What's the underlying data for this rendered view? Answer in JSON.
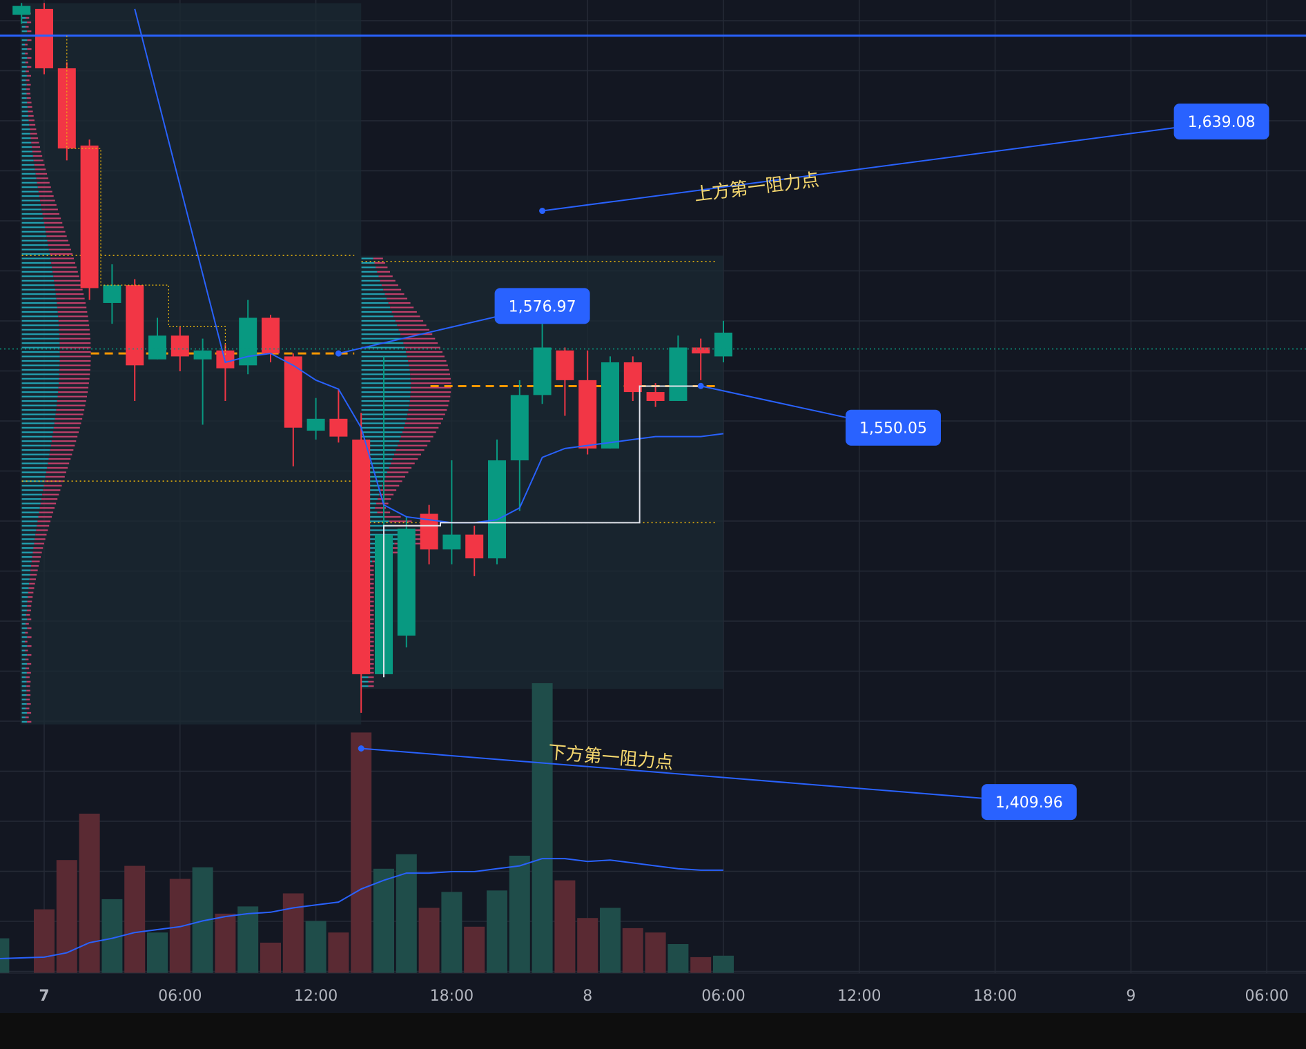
{
  "chart_data": {
    "type": "candlestick",
    "symbol_interval_hours": 1,
    "y_range": [
      1400,
      1680
    ],
    "x_ticks": [
      {
        "label": "7",
        "bold": true,
        "h": 0
      },
      {
        "label": "06:00",
        "h": 6
      },
      {
        "label": "12:00",
        "h": 12
      },
      {
        "label": "18:00",
        "h": 18
      },
      {
        "label": "8",
        "h": 24
      },
      {
        "label": "06:00",
        "h": 30
      },
      {
        "label": "12:00",
        "h": 36
      },
      {
        "label": "18:00",
        "h": 42
      },
      {
        "label": "9",
        "h": 48
      },
      {
        "label": "06:00",
        "h": 54
      }
    ],
    "candles": [
      {
        "h": -1,
        "o": 1675,
        "c": 1678,
        "hi": 1679,
        "lo": 1672
      },
      {
        "h": 0,
        "o": 1677,
        "c": 1657,
        "hi": 1679,
        "lo": 1655
      },
      {
        "h": 1,
        "o": 1657,
        "c": 1630,
        "hi": 1659,
        "lo": 1626
      },
      {
        "h": 2,
        "o": 1631,
        "c": 1583,
        "hi": 1633,
        "lo": 1579
      },
      {
        "h": 3,
        "o": 1578,
        "c": 1584,
        "hi": 1591,
        "lo": 1571
      },
      {
        "h": 4,
        "o": 1584,
        "c": 1557,
        "hi": 1586,
        "lo": 1545
      },
      {
        "h": 5,
        "o": 1559,
        "c": 1567,
        "hi": 1573,
        "lo": 1559
      },
      {
        "h": 6,
        "o": 1567,
        "c": 1560,
        "hi": 1570,
        "lo": 1555
      },
      {
        "h": 7,
        "o": 1559,
        "c": 1562,
        "hi": 1566,
        "lo": 1537
      },
      {
        "h": 8,
        "o": 1562,
        "c": 1556,
        "hi": 1564,
        "lo": 1545
      },
      {
        "h": 9,
        "o": 1557,
        "c": 1573,
        "hi": 1579,
        "lo": 1554
      },
      {
        "h": 10,
        "o": 1573,
        "c": 1561,
        "hi": 1574,
        "lo": 1558
      },
      {
        "h": 11,
        "o": 1560,
        "c": 1536,
        "hi": 1561,
        "lo": 1523
      },
      {
        "h": 12,
        "o": 1535,
        "c": 1539,
        "hi": 1546,
        "lo": 1532
      },
      {
        "h": 13,
        "o": 1539,
        "c": 1533,
        "hi": 1549,
        "lo": 1531
      },
      {
        "h": 14,
        "o": 1532,
        "c": 1453,
        "hi": 1541,
        "lo": 1440
      },
      {
        "h": 15,
        "o": 1453,
        "c": 1500,
        "hi": 1560,
        "lo": 1452
      },
      {
        "h": 16,
        "o": 1466,
        "c": 1502,
        "hi": 1506,
        "lo": 1462
      },
      {
        "h": 17,
        "o": 1507,
        "c": 1495,
        "hi": 1510,
        "lo": 1490
      },
      {
        "h": 18,
        "o": 1495,
        "c": 1500,
        "hi": 1525,
        "lo": 1490
      },
      {
        "h": 19,
        "o": 1500,
        "c": 1492,
        "hi": 1503,
        "lo": 1486
      },
      {
        "h": 20,
        "o": 1492,
        "c": 1525,
        "hi": 1532,
        "lo": 1490
      },
      {
        "h": 21,
        "o": 1525,
        "c": 1547,
        "hi": 1552,
        "lo": 1508
      },
      {
        "h": 22,
        "o": 1547,
        "c": 1563,
        "hi": 1577,
        "lo": 1544
      },
      {
        "h": 23,
        "o": 1562,
        "c": 1552,
        "hi": 1563,
        "lo": 1540
      },
      {
        "h": 24,
        "o": 1552,
        "c": 1529,
        "hi": 1562,
        "lo": 1527
      },
      {
        "h": 25,
        "o": 1529,
        "c": 1558,
        "hi": 1560,
        "lo": 1529
      },
      {
        "h": 26,
        "o": 1558,
        "c": 1548,
        "hi": 1560,
        "lo": 1545
      },
      {
        "h": 27,
        "o": 1548,
        "c": 1545,
        "hi": 1551,
        "lo": 1543
      },
      {
        "h": 28,
        "o": 1545,
        "c": 1563,
        "hi": 1567,
        "lo": 1545
      },
      {
        "h": 29,
        "o": 1563,
        "c": 1561,
        "hi": 1566,
        "lo": 1552
      },
      {
        "h": 30,
        "o": 1560,
        "c": 1568,
        "hi": 1572,
        "lo": 1558
      }
    ],
    "volume_scale_max": 1000,
    "volumes": [
      {
        "h": -2,
        "v": 120,
        "up": true
      },
      {
        "h": 0,
        "v": 220,
        "up": false
      },
      {
        "h": 1,
        "v": 390,
        "up": false
      },
      {
        "h": 2,
        "v": 550,
        "up": false
      },
      {
        "h": 3,
        "v": 255,
        "up": true
      },
      {
        "h": 4,
        "v": 370,
        "up": false
      },
      {
        "h": 5,
        "v": 140,
        "up": true
      },
      {
        "h": 6,
        "v": 325,
        "up": false
      },
      {
        "h": 7,
        "v": 365,
        "up": true
      },
      {
        "h": 8,
        "v": 205,
        "up": false
      },
      {
        "h": 9,
        "v": 230,
        "up": true
      },
      {
        "h": 10,
        "v": 105,
        "up": false
      },
      {
        "h": 11,
        "v": 275,
        "up": false
      },
      {
        "h": 12,
        "v": 180,
        "up": true
      },
      {
        "h": 13,
        "v": 140,
        "up": false
      },
      {
        "h": 14,
        "v": 830,
        "up": false
      },
      {
        "h": 15,
        "v": 360,
        "up": true
      },
      {
        "h": 16,
        "v": 410,
        "up": true
      },
      {
        "h": 17,
        "v": 225,
        "up": false
      },
      {
        "h": 18,
        "v": 280,
        "up": true
      },
      {
        "h": 19,
        "v": 160,
        "up": false
      },
      {
        "h": 20,
        "v": 285,
        "up": true
      },
      {
        "h": 21,
        "v": 405,
        "up": true
      },
      {
        "h": 22,
        "v": 1000,
        "up": true
      },
      {
        "h": 23,
        "v": 320,
        "up": false
      },
      {
        "h": 24,
        "v": 190,
        "up": false
      },
      {
        "h": 25,
        "v": 225,
        "up": true
      },
      {
        "h": 26,
        "v": 155,
        "up": false
      },
      {
        "h": 27,
        "v": 140,
        "up": false
      },
      {
        "h": 28,
        "v": 100,
        "up": true
      },
      {
        "h": 29,
        "v": 55,
        "up": false
      },
      {
        "h": 30,
        "v": 60,
        "up": true
      }
    ],
    "volume_ma": [
      [
        -2,
        50
      ],
      [
        0,
        55
      ],
      [
        1,
        70
      ],
      [
        2,
        105
      ],
      [
        3,
        120
      ],
      [
        4,
        140
      ],
      [
        5,
        150
      ],
      [
        6,
        160
      ],
      [
        7,
        180
      ],
      [
        8,
        195
      ],
      [
        9,
        205
      ],
      [
        10,
        210
      ],
      [
        11,
        225
      ],
      [
        12,
        235
      ],
      [
        13,
        245
      ],
      [
        14,
        290
      ],
      [
        15,
        320
      ],
      [
        16,
        345
      ],
      [
        17,
        345
      ],
      [
        18,
        350
      ],
      [
        19,
        350
      ],
      [
        20,
        360
      ],
      [
        21,
        370
      ],
      [
        22,
        395
      ],
      [
        23,
        395
      ],
      [
        24,
        385
      ],
      [
        25,
        390
      ],
      [
        26,
        380
      ],
      [
        27,
        370
      ],
      [
        28,
        360
      ],
      [
        29,
        355
      ],
      [
        30,
        355
      ]
    ],
    "anchored_vwap": [
      [
        4,
        1677
      ],
      [
        8,
        1558
      ],
      [
        9,
        1560
      ],
      [
        10,
        1561
      ],
      [
        11,
        1557
      ],
      [
        12,
        1552
      ],
      [
        13,
        1549
      ],
      [
        14,
        1536
      ],
      [
        15,
        1510
      ],
      [
        16,
        1506
      ],
      [
        17,
        1505
      ],
      [
        18,
        1504
      ],
      [
        19,
        1504
      ],
      [
        20,
        1505
      ],
      [
        21,
        1509
      ],
      [
        22,
        1526
      ],
      [
        23,
        1529
      ],
      [
        24,
        1530
      ],
      [
        25,
        1531
      ],
      [
        26,
        1532
      ],
      [
        27,
        1533
      ],
      [
        28,
        1533
      ],
      [
        29,
        1533
      ],
      [
        30,
        1534
      ]
    ],
    "horizontal_line": 1668,
    "current_price_line": 1562.5,
    "trend_lines": [
      {
        "from": [
          22,
          1609
        ],
        "to": [
          52,
          1639.08
        ],
        "label": "1,639.08"
      },
      {
        "from": [
          13,
          1561
        ],
        "to": [
          22,
          1576.97
        ],
        "label": "1,576.97"
      },
      {
        "from": [
          29,
          1550.05
        ],
        "to": [
          37.5,
          1536
        ],
        "label": "1,550.05"
      },
      {
        "from": [
          14,
          1428
        ],
        "to": [
          43.5,
          1409.96
        ],
        "label": "1,409.96"
      }
    ],
    "annotations": [
      {
        "text": "上方第一阻力点",
        "at": [
          31.5,
          1615
        ],
        "rotate": -7
      },
      {
        "text": "下方第一阻力点",
        "at": [
          25,
          1423
        ],
        "rotate": 5
      }
    ],
    "volume_profiles": [
      {
        "from_h": -0.5,
        "to_h": 14,
        "poc": 1561,
        "vah": 1594,
        "val": 1518,
        "hi": 1678,
        "lo": 1437
      },
      {
        "from_h": 14.5,
        "to_h": 30,
        "poc": 1550,
        "vah": 1592,
        "val": 1504,
        "hi": 1593,
        "lo": 1449
      }
    ],
    "white_path": [
      [
        15,
        1452
      ],
      [
        15,
        1503
      ],
      [
        17.5,
        1503
      ],
      [
        17.5,
        1504
      ],
      [
        26.3,
        1504
      ],
      [
        26.3,
        1550
      ],
      [
        29,
        1550
      ]
    ],
    "stepped_line": [
      [
        1,
        1668
      ],
      [
        1,
        1630
      ],
      [
        2.5,
        1630
      ],
      [
        2.5,
        1584
      ],
      [
        5.5,
        1584
      ],
      [
        5.5,
        1570
      ],
      [
        8,
        1570
      ],
      [
        8,
        1560
      ]
    ]
  }
}
